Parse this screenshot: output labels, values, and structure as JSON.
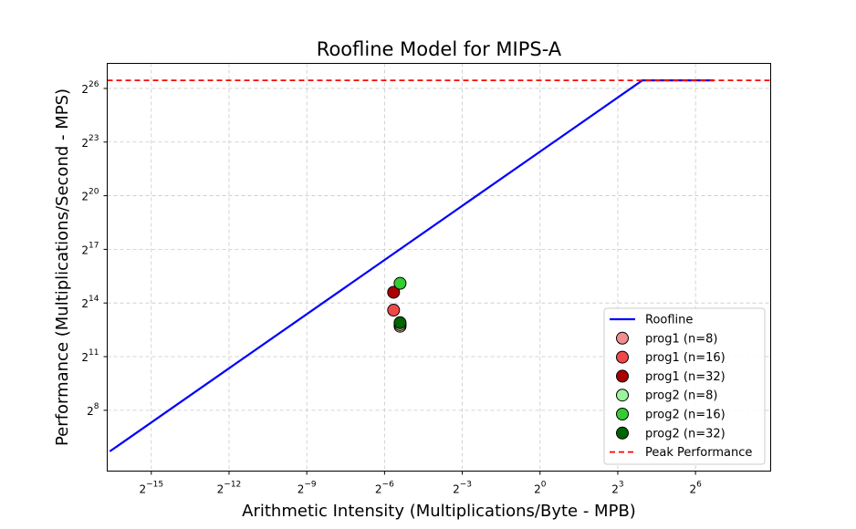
{
  "chart_data": {
    "type": "scatter",
    "title": "Roofline Model for MIPS-A",
    "xlabel": "Arithmetic Intensity (Multiplications/Byte - MPB)",
    "ylabel": "Performance (Multiplications/Second - MPS)",
    "xscale": "log2",
    "yscale": "log2",
    "xlim_exp": [
      -16.7,
      8.9
    ],
    "ylim_exp": [
      4.6,
      27.4
    ],
    "x_ticks": {
      "exps": [
        -15,
        -12,
        -9,
        -6,
        -3,
        0,
        3,
        6
      ],
      "labels": [
        "2^−15",
        "2^−12",
        "2^−9",
        "2^−6",
        "2^−3",
        "2^0",
        "2^3",
        "2^6"
      ]
    },
    "y_ticks": {
      "exps": [
        8,
        11,
        14,
        17,
        20,
        23,
        26
      ],
      "labels": [
        "2^8",
        "2^11",
        "2^14",
        "2^17",
        "2^20",
        "2^23",
        "2^26"
      ]
    },
    "grid": true,
    "legend_position": "bottom-right",
    "roofline": {
      "name": "Roofline",
      "color": "#0000ff",
      "points": [
        {
          "x_exp": -16.6,
          "y_exp": 5.7
        },
        {
          "x_exp": 3.95,
          "y_exp": 26.45
        },
        {
          "x_exp": 6.7,
          "y_exp": 26.45
        }
      ]
    },
    "peak": {
      "name": "Peak Performance",
      "y_exp": 26.45,
      "color": "#ff0000"
    },
    "series": [
      {
        "name": "prog1 (n=8)",
        "color": "#f28e8e",
        "points": [
          {
            "x_exp": -5.4,
            "y_exp": 12.7
          }
        ]
      },
      {
        "name": "prog1 (n=16)",
        "color": "#f04848",
        "points": [
          {
            "x_exp": -5.65,
            "y_exp": 13.6
          }
        ]
      },
      {
        "name": "prog1 (n=32)",
        "color": "#aa0000",
        "points": [
          {
            "x_exp": -5.65,
            "y_exp": 14.6
          }
        ]
      },
      {
        "name": "prog2 (n=8)",
        "color": "#9cf59c",
        "points": [
          {
            "x_exp": -5.4,
            "y_exp": 12.8
          }
        ]
      },
      {
        "name": "prog2 (n=16)",
        "color": "#33cc33",
        "points": [
          {
            "x_exp": -5.4,
            "y_exp": 15.1
          }
        ]
      },
      {
        "name": "prog2 (n=32)",
        "color": "#006400",
        "points": [
          {
            "x_exp": -5.4,
            "y_exp": 12.9
          }
        ]
      }
    ]
  }
}
